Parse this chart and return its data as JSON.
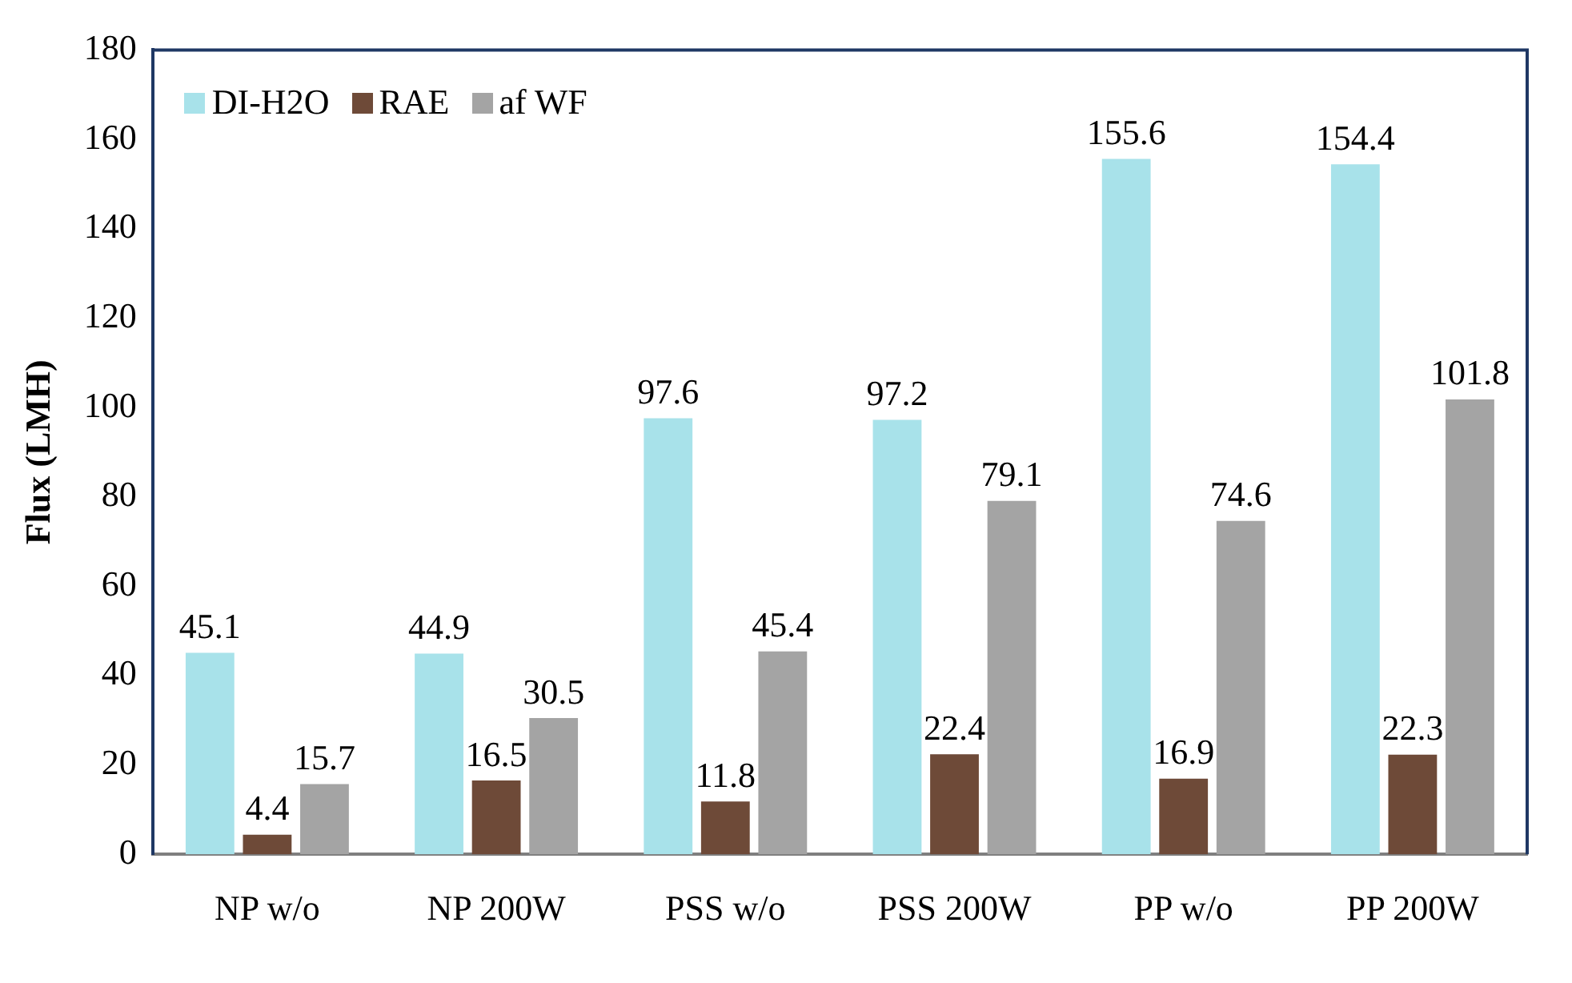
{
  "chart_data": {
    "type": "bar",
    "ylabel": "Flux (LMH)",
    "categories": [
      "NP w/o",
      "NP 200W",
      "PSS w/o",
      "PSS 200W",
      "PP w/o",
      "PP 200W"
    ],
    "series": [
      {
        "name": "DI-H2O",
        "color": "#a8e2ea",
        "values": [
          45.1,
          44.9,
          97.6,
          97.2,
          155.6,
          154.4
        ]
      },
      {
        "name": "RAE",
        "color": "#6e4a38",
        "values": [
          4.4,
          16.5,
          11.8,
          22.4,
          16.9,
          22.3
        ]
      },
      {
        "name": "af WF",
        "color": "#a4a4a4",
        "values": [
          15.7,
          30.5,
          45.4,
          79.1,
          74.6,
          101.8
        ]
      }
    ],
    "ylim": [
      0,
      180
    ],
    "yticks": [
      0,
      20,
      40,
      60,
      80,
      100,
      120,
      140,
      160,
      180
    ],
    "grid": false,
    "legend": "top left",
    "data_labels": true
  }
}
